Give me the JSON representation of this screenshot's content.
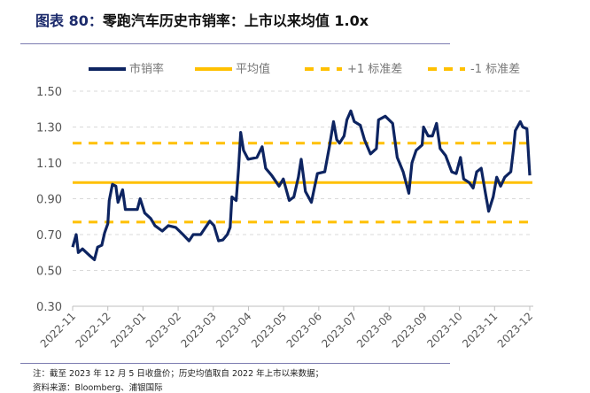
{
  "title": {
    "lead": "图表 80：",
    "text": "零跑汽车历史市销率：上市以来均值 1.0x"
  },
  "notes": {
    "note": "注：截至 2023 年 12 月 5 日收盘价；历史均值取自 2022 年上市以来数据；",
    "source": "资料来源：Bloomberg、浦银国际"
  },
  "colors": {
    "series": "#0d2461",
    "mean": "#ffc000",
    "grid": "#d9d9d9"
  },
  "chart_data": {
    "type": "line",
    "title": "零跑汽车历史市销率：上市以来均值 1.0x",
    "legend": [
      "市销率",
      "平均值",
      "+1 标准差",
      "-1 标准差"
    ],
    "legend_position": "top",
    "ylim": [
      0.3,
      1.5
    ],
    "yticks": [
      "1.50",
      "1.30",
      "1.10",
      "0.90",
      "0.70",
      "0.50",
      "0.30"
    ],
    "ytick_values": [
      1.5,
      1.3,
      1.1,
      0.9,
      0.7,
      0.5,
      0.3
    ],
    "xticks": [
      "2022-11",
      "2022-12",
      "2023-01",
      "2023-02",
      "2023-03",
      "2023-04",
      "2023-05",
      "2023-06",
      "2023-07",
      "2023-08",
      "2023-09",
      "2023-10",
      "2023-11",
      "2023-12"
    ],
    "xlim_months": [
      0,
      13
    ],
    "mean": 0.99,
    "plus1sd": 1.21,
    "minus1sd": 0.77,
    "grid": "horizontal dashed",
    "series": [
      {
        "name": "市销率",
        "t": [
          0,
          0.1,
          0.16,
          0.28,
          0.5,
          0.62,
          0.71,
          0.83,
          0.91,
          1.0,
          1.04,
          1.13,
          1.23,
          1.29,
          1.42,
          1.5,
          1.63,
          1.84,
          1.92,
          2.05,
          2.22,
          2.34,
          2.55,
          2.72,
          2.93,
          3.14,
          3.31,
          3.43,
          3.64,
          3.9,
          4.02,
          4.15,
          4.27,
          4.4,
          4.48,
          4.53,
          4.65,
          4.72,
          4.78,
          4.86,
          4.99,
          5.24,
          5.39,
          5.49,
          5.66,
          5.87,
          5.99,
          6.16,
          6.29,
          6.42,
          6.5,
          6.62,
          6.79,
          6.96,
          7.17,
          7.3,
          7.42,
          7.51,
          7.59,
          7.72,
          7.8,
          7.91,
          8.01,
          8.18,
          8.3,
          8.47,
          8.64,
          8.7,
          8.89,
          9.1,
          9.23,
          9.4,
          9.56,
          9.65,
          9.77,
          9.94,
          9.98,
          10.11,
          10.23,
          10.35,
          10.45,
          10.61,
          10.78,
          10.91,
          11.03,
          11.12,
          11.28,
          11.39,
          11.49,
          11.62,
          11.74,
          11.83,
          11.96,
          12.06,
          12.17,
          12.29,
          12.46,
          12.54,
          12.59,
          12.73,
          12.8,
          12.92,
          13.0
        ],
        "values": [
          0.63,
          0.7,
          0.6,
          0.62,
          0.58,
          0.56,
          0.63,
          0.64,
          0.71,
          0.76,
          0.89,
          0.98,
          0.97,
          0.88,
          0.95,
          0.84,
          0.84,
          0.84,
          0.9,
          0.82,
          0.79,
          0.75,
          0.72,
          0.75,
          0.74,
          0.7,
          0.665,
          0.7,
          0.7,
          0.775,
          0.75,
          0.665,
          0.67,
          0.7,
          0.74,
          0.91,
          0.89,
          1.07,
          1.27,
          1.17,
          1.12,
          1.13,
          1.19,
          1.07,
          1.03,
          0.97,
          1.01,
          0.89,
          0.91,
          1.02,
          1.12,
          0.94,
          0.88,
          1.04,
          1.05,
          1.19,
          1.33,
          1.23,
          1.21,
          1.25,
          1.34,
          1.39,
          1.33,
          1.31,
          1.23,
          1.15,
          1.18,
          1.34,
          1.36,
          1.32,
          1.13,
          1.05,
          0.93,
          1.1,
          1.17,
          1.2,
          1.3,
          1.25,
          1.25,
          1.32,
          1.18,
          1.14,
          1.05,
          1.04,
          1.13,
          1.01,
          0.99,
          0.96,
          1.05,
          1.07,
          0.93,
          0.83,
          0.91,
          1.02,
          0.97,
          1.02,
          1.05,
          1.18,
          1.28,
          1.33,
          1.3,
          1.29,
          1.03
        ]
      }
    ]
  }
}
